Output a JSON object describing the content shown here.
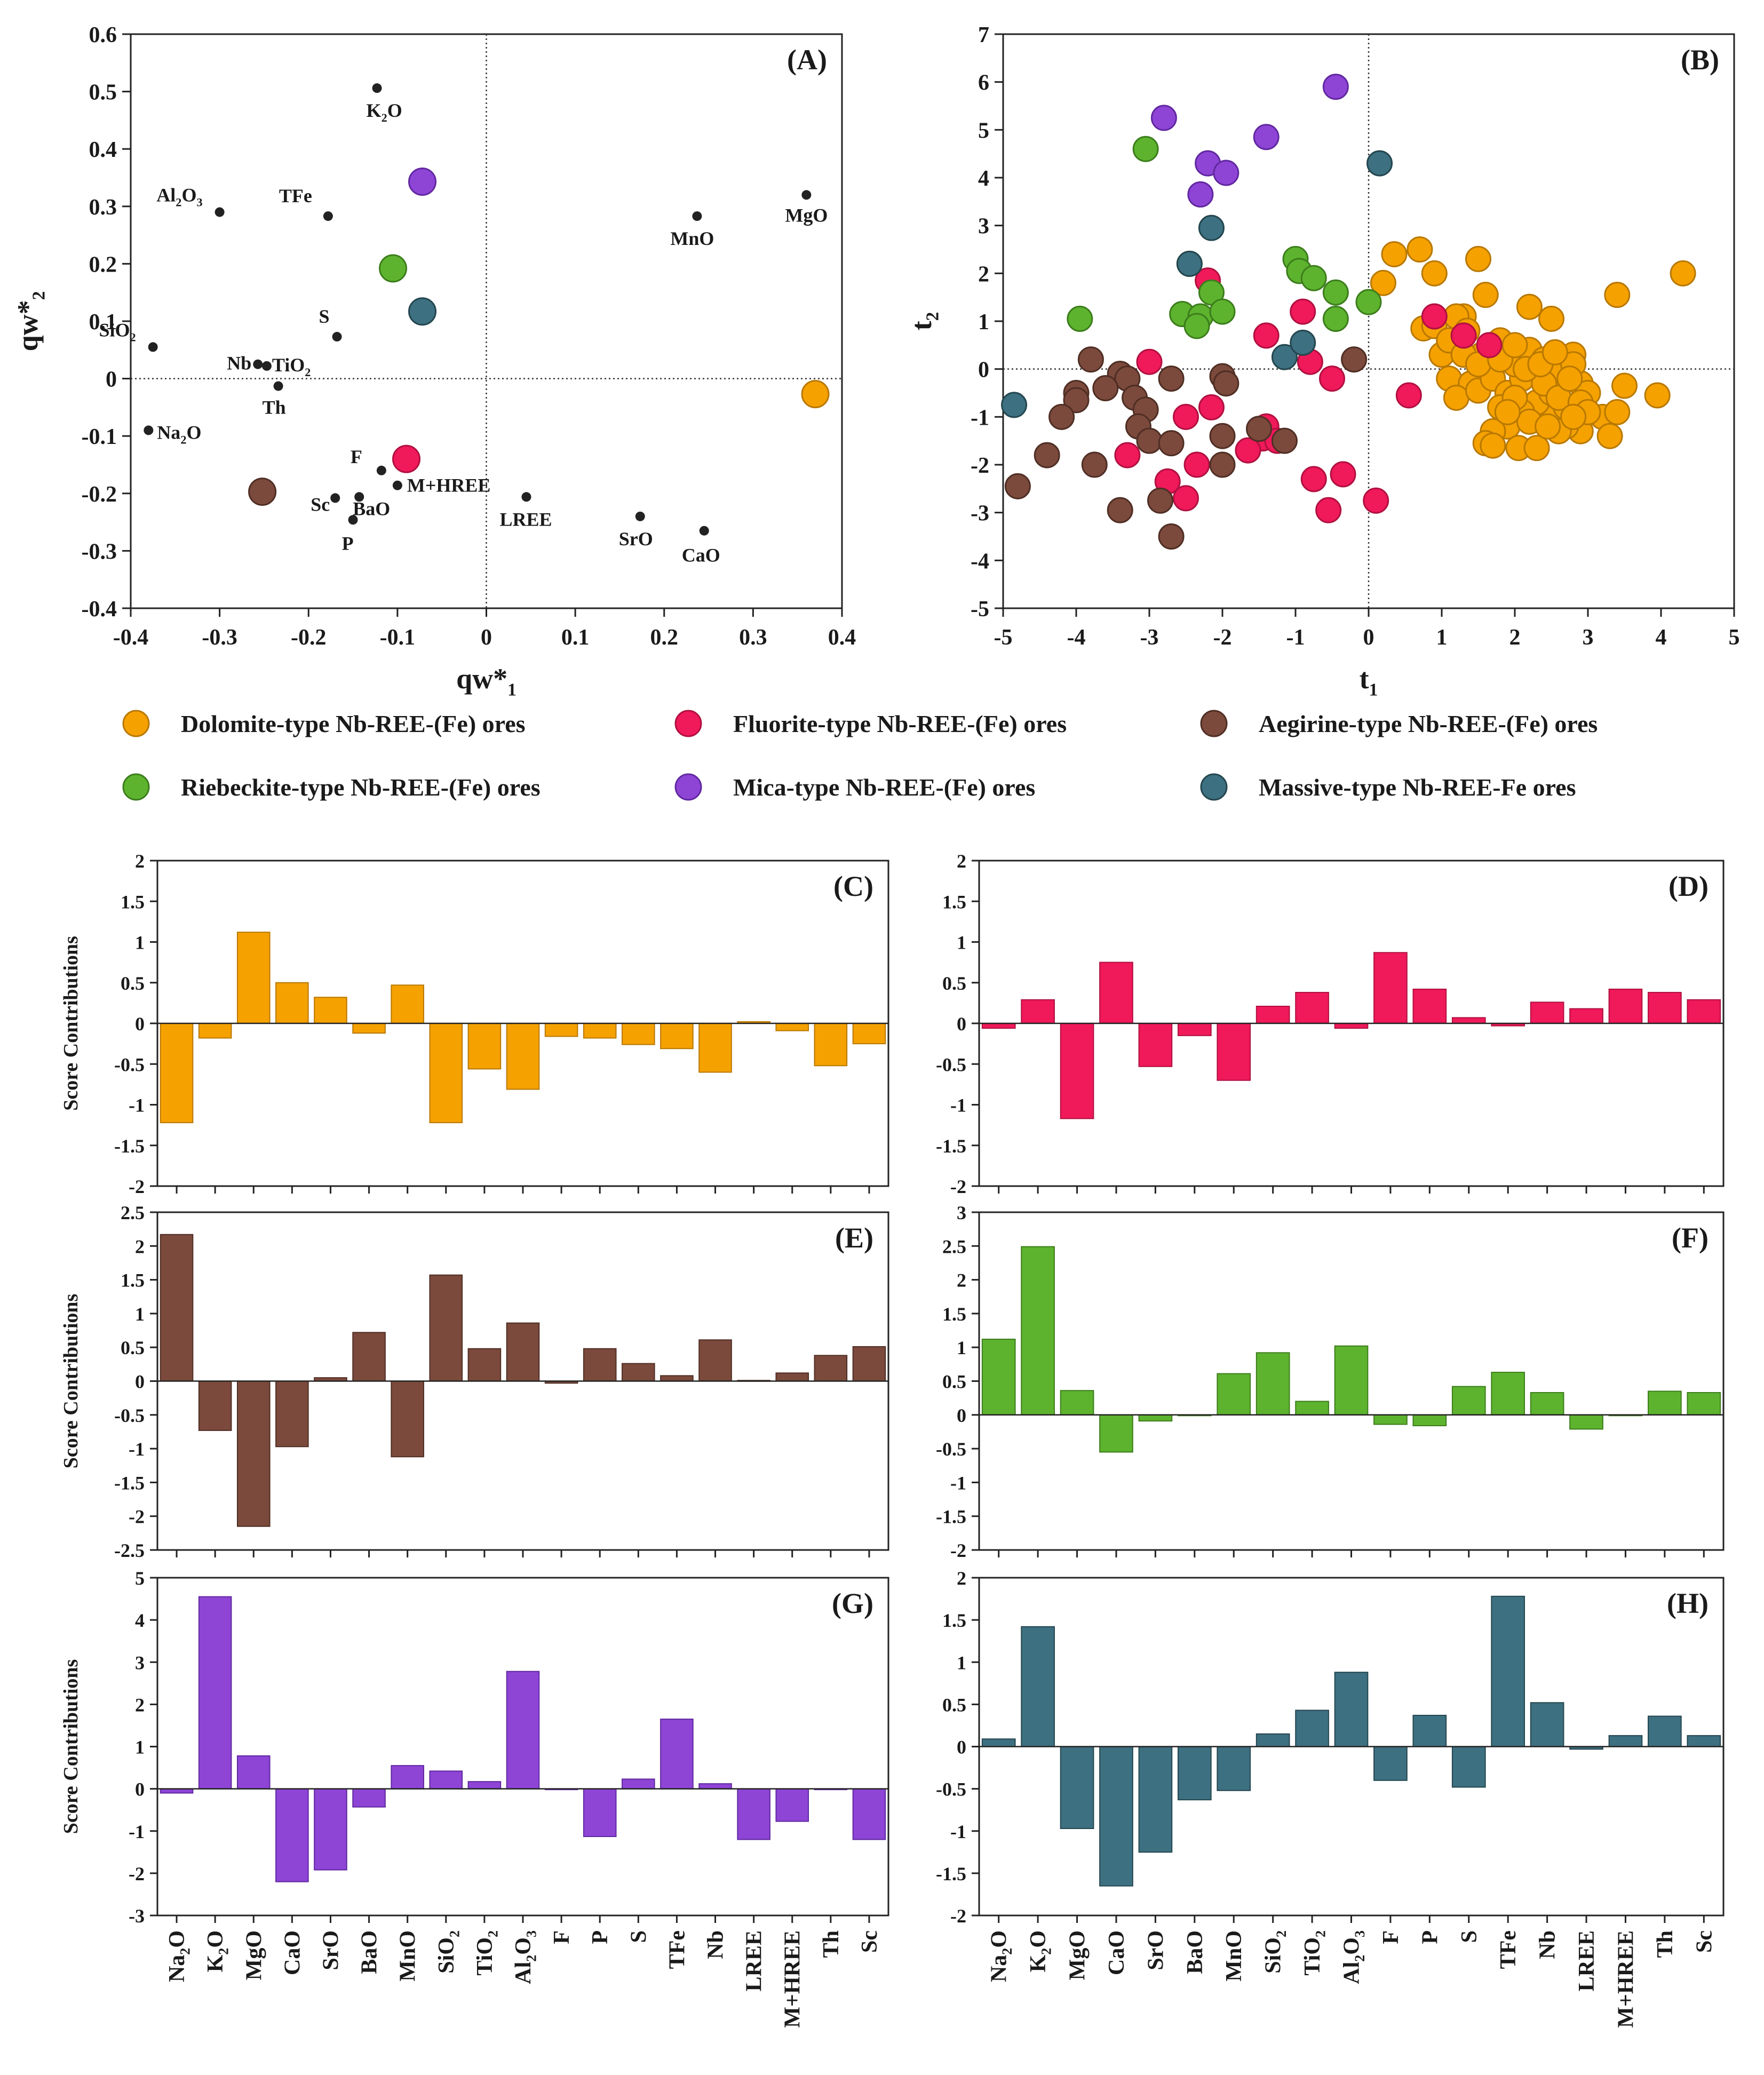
{
  "legend": [
    {
      "key": "dolomite",
      "label": "Dolomite-type Nb-REE-(Fe) ores",
      "color": "#F5A100"
    },
    {
      "key": "fluorite",
      "label": "Fluorite-type Nb-REE-(Fe) ores",
      "color": "#F0195A"
    },
    {
      "key": "aegirine",
      "label": "Aegirine-type Nb-REE-(Fe) ores",
      "color": "#7B4A3C"
    },
    {
      "key": "riebeckite",
      "label": "Riebeckite-type Nb-REE-(Fe) ores",
      "color": "#5DB32E"
    },
    {
      "key": "mica",
      "label": "Mica-type Nb-REE-(Fe) ores",
      "color": "#8E45D6"
    },
    {
      "key": "massive",
      "label": "Massive-type Nb-REE-Fe ores",
      "color": "#3D7080"
    }
  ],
  "chart_data": [
    {
      "id": "A",
      "type": "scatter",
      "panel_label": "(A)",
      "xlabel": "qw*",
      "xlabel_sub": "1",
      "ylabel": "qw*",
      "ylabel_sub": "2",
      "xlim": [
        -0.4,
        0.4
      ],
      "ylim": [
        -0.4,
        0.6
      ],
      "xticks": [
        "-0.4",
        "-0.3",
        "-0.2",
        "-0.1",
        "0",
        "0.1",
        "0.2",
        "0.3",
        "0.4"
      ],
      "yticks": [
        "-0.4",
        "-0.3",
        "-0.2",
        "-0.1",
        "0",
        "0.1",
        "0.2",
        "0.3",
        "0.4",
        "0.5",
        "0.6"
      ],
      "loadings": [
        {
          "label": "K",
          "sub": "2",
          "tail": "O",
          "x": -0.123,
          "y": 0.506
        },
        {
          "label": "Al",
          "sub": "2",
          "tail": "O",
          "sub2": "3",
          "x": -0.3,
          "y": 0.29
        },
        {
          "label": "TFe",
          "x": -0.178,
          "y": 0.283
        },
        {
          "label": "MnO",
          "x": 0.237,
          "y": 0.283
        },
        {
          "label": "MgO",
          "x": 0.36,
          "y": 0.32
        },
        {
          "label": "SiO",
          "sub": "2",
          "x": -0.375,
          "y": 0.055
        },
        {
          "label": "S",
          "x": -0.168,
          "y": 0.073
        },
        {
          "label": "Nb",
          "x": -0.257,
          "y": 0.025
        },
        {
          "label": "TiO",
          "sub": "2",
          "x": -0.247,
          "y": 0.022
        },
        {
          "label": "Th",
          "x": -0.234,
          "y": -0.013
        },
        {
          "label": "Na",
          "sub": "2",
          "tail": "O",
          "x": -0.38,
          "y": -0.09
        },
        {
          "label": "F",
          "x": -0.118,
          "y": -0.16
        },
        {
          "label": "M+HREE",
          "x": -0.1,
          "y": -0.186
        },
        {
          "label": "Sc",
          "x": -0.17,
          "y": -0.208
        },
        {
          "label": "BaO",
          "x": -0.143,
          "y": -0.206
        },
        {
          "label": "P",
          "x": -0.15,
          "y": -0.246
        },
        {
          "label": "LREE",
          "x": 0.045,
          "y": -0.206
        },
        {
          "label": "SrO",
          "x": 0.173,
          "y": -0.24
        },
        {
          "label": "CaO",
          "x": 0.245,
          "y": -0.265
        }
      ],
      "centroids": [
        {
          "group": "mica",
          "x": -0.072,
          "y": 0.343
        },
        {
          "group": "riebeckite",
          "x": -0.105,
          "y": 0.192
        },
        {
          "group": "massive",
          "x": -0.072,
          "y": 0.117
        },
        {
          "group": "dolomite",
          "x": 0.37,
          "y": -0.027
        },
        {
          "group": "fluorite",
          "x": -0.09,
          "y": -0.14
        },
        {
          "group": "aegirine",
          "x": -0.252,
          "y": -0.197
        }
      ]
    },
    {
      "id": "B",
      "type": "scatter",
      "panel_label": "(B)",
      "xlabel": "t",
      "xlabel_sub": "1",
      "ylabel": "t",
      "ylabel_sub": "2",
      "xlim": [
        -5,
        5
      ],
      "ylim": [
        -5,
        7
      ],
      "xticks": [
        "-5",
        "-4",
        "-3",
        "-2",
        "-1",
        "0",
        "1",
        "2",
        "3",
        "4",
        "5"
      ],
      "yticks": [
        "-5",
        "-4",
        "-3",
        "-2",
        "-1",
        "0",
        "1",
        "2",
        "3",
        "4",
        "5",
        "6",
        "7"
      ],
      "series": [
        {
          "group": "dolomite",
          "points": [
            [
              0.2,
              1.8
            ],
            [
              0.35,
              2.4
            ],
            [
              0.7,
              2.5
            ],
            [
              0.9,
              2
            ],
            [
              0.75,
              0.85
            ],
            [
              0.9,
              0.9
            ],
            [
              1.0,
              0.3
            ],
            [
              1.3,
              1.1
            ],
            [
              1.5,
              2.3
            ],
            [
              1.6,
              1.55
            ],
            [
              1.8,
              0.6
            ],
            [
              2.2,
              1.3
            ],
            [
              2.5,
              1.05
            ],
            [
              3.4,
              1.55
            ],
            [
              4.3,
              2
            ],
            [
              1.2,
              1.1
            ],
            [
              1.1,
              0.6
            ],
            [
              1.35,
              0.8
            ],
            [
              1.55,
              0.3
            ],
            [
              1.1,
              -0.2
            ],
            [
              1.4,
              -0.3
            ],
            [
              1.2,
              -0.6
            ],
            [
              1.5,
              -0.45
            ],
            [
              1.7,
              -0.2
            ],
            [
              1.9,
              -0.5
            ],
            [
              2.1,
              -0.2
            ],
            [
              2.0,
              0.1
            ],
            [
              2.2,
              0.4
            ],
            [
              2.4,
              0.2
            ],
            [
              2.6,
              0.0
            ],
            [
              2.8,
              0.3
            ],
            [
              2.9,
              -0.3
            ],
            [
              3.0,
              -0.5
            ],
            [
              3.2,
              -1.0
            ],
            [
              3.4,
              -0.9
            ],
            [
              3.5,
              -0.35
            ],
            [
              3.95,
              -0.55
            ],
            [
              3.3,
              -1.4
            ],
            [
              2.9,
              -1.3
            ],
            [
              2.7,
              -1.2
            ],
            [
              2.5,
              -0.9
            ],
            [
              2.3,
              -0.7
            ],
            [
              2.1,
              -0.9
            ],
            [
              1.9,
              -1.2
            ],
            [
              1.7,
              -1.3
            ],
            [
              1.6,
              -1.55
            ],
            [
              1.7,
              -1.6
            ],
            [
              2.05,
              -1.65
            ],
            [
              2.3,
              -1.65
            ],
            [
              2.5,
              -0.5
            ],
            [
              2.7,
              -0.8
            ],
            [
              2.8,
              0.1
            ],
            [
              1.8,
              -0.8
            ],
            [
              2.2,
              -1.1
            ],
            [
              2.0,
              -0.6
            ],
            [
              2.4,
              -0.3
            ],
            [
              2.6,
              -0.6
            ],
            [
              1.3,
              0.3
            ],
            [
              1.5,
              0.1
            ],
            [
              1.8,
              0.2
            ],
            [
              2.0,
              0.5
            ],
            [
              2.15,
              0.0
            ],
            [
              2.35,
              0.1
            ],
            [
              2.55,
              0.35
            ],
            [
              2.75,
              -0.2
            ],
            [
              2.9,
              -0.7
            ],
            [
              3.0,
              -0.9
            ],
            [
              2.6,
              -1.3
            ],
            [
              1.9,
              -0.9
            ],
            [
              2.45,
              -1.2
            ],
            [
              2.8,
              -1.0
            ]
          ]
        },
        {
          "group": "fluorite",
          "points": [
            [
              -2.2,
              1.85
            ],
            [
              -0.9,
              1.2
            ],
            [
              0.9,
              1.1
            ],
            [
              1.3,
              0.7
            ],
            [
              1.65,
              0.5
            ],
            [
              -1.4,
              0.7
            ],
            [
              -3.0,
              0.15
            ],
            [
              -0.8,
              0.15
            ],
            [
              -0.5,
              -0.2
            ],
            [
              0.55,
              -0.55
            ],
            [
              -2.5,
              -1.0
            ],
            [
              -2.15,
              -0.8
            ],
            [
              -1.4,
              -1.2
            ],
            [
              -1.45,
              -1.45
            ],
            [
              -1.25,
              -1.5
            ],
            [
              -1.65,
              -1.7
            ],
            [
              -3.3,
              -1.8
            ],
            [
              -2.35,
              -2.0
            ],
            [
              -0.75,
              -2.3
            ],
            [
              -0.35,
              -2.2
            ],
            [
              -2.75,
              -2.35
            ],
            [
              -2.5,
              -2.7
            ],
            [
              -0.55,
              -2.95
            ],
            [
              0.1,
              -2.75
            ]
          ]
        },
        {
          "group": "aegirine",
          "points": [
            [
              -3.8,
              0.2
            ],
            [
              -3.4,
              -0.1
            ],
            [
              -3.3,
              -0.2
            ],
            [
              -3.6,
              -0.4
            ],
            [
              -4.0,
              -0.5
            ],
            [
              -2.7,
              -0.2
            ],
            [
              -2.0,
              -0.15
            ],
            [
              -1.95,
              -0.3
            ],
            [
              -4.0,
              -0.65
            ],
            [
              -4.2,
              -1.0
            ],
            [
              -3.2,
              -0.6
            ],
            [
              -3.05,
              -0.85
            ],
            [
              -3.15,
              -1.2
            ],
            [
              -3.0,
              -1.5
            ],
            [
              -2.7,
              -1.55
            ],
            [
              -2.0,
              -1.4
            ],
            [
              -1.5,
              -1.25
            ],
            [
              -1.15,
              -1.5
            ],
            [
              -4.4,
              -1.8
            ],
            [
              -3.75,
              -2.0
            ],
            [
              -2.0,
              -2.0
            ],
            [
              -4.8,
              -2.45
            ],
            [
              -2.85,
              -2.75
            ],
            [
              -3.4,
              -2.95
            ],
            [
              -2.7,
              -3.5
            ],
            [
              -0.2,
              0.2
            ]
          ]
        },
        {
          "group": "riebeckite",
          "points": [
            [
              -3.05,
              4.6
            ],
            [
              -1.0,
              2.3
            ],
            [
              -0.95,
              2.05
            ],
            [
              -0.75,
              1.9
            ],
            [
              -2.15,
              1.6
            ],
            [
              -2.45,
              2.2
            ],
            [
              -0.45,
              1.6
            ],
            [
              -2.55,
              1.15
            ],
            [
              -2.3,
              1.1
            ],
            [
              -2.0,
              1.2
            ],
            [
              -2.35,
              0.9
            ],
            [
              -0.45,
              1.05
            ],
            [
              0.0,
              1.4
            ],
            [
              -3.95,
              1.05
            ]
          ]
        },
        {
          "group": "mica",
          "points": [
            [
              -2.8,
              5.25
            ],
            [
              -2.2,
              4.3
            ],
            [
              -1.95,
              4.1
            ],
            [
              -1.4,
              4.85
            ],
            [
              -0.45,
              5.9
            ],
            [
              -2.3,
              3.65
            ]
          ]
        },
        {
          "group": "massive",
          "points": [
            [
              -4.85,
              -0.75
            ],
            [
              -2.45,
              2.2
            ],
            [
              -2.15,
              2.95
            ],
            [
              -1.15,
              0.25
            ],
            [
              -0.9,
              0.55
            ],
            [
              0.15,
              4.3
            ]
          ]
        }
      ]
    },
    {
      "id": "C",
      "type": "bar",
      "panel_label": "(C)",
      "group": "dolomite",
      "ylabel": "Score Contributions",
      "ylim": [
        -2,
        2
      ],
      "yticks": [
        "-2",
        "-1.5",
        "-1",
        "-0.5",
        "0",
        "0.5",
        "1",
        "1.5",
        "2"
      ],
      "values": [
        -1.22,
        -0.18,
        1.12,
        0.5,
        0.32,
        -0.12,
        0.47,
        -1.22,
        -0.56,
        -0.81,
        -0.16,
        -0.18,
        -0.26,
        -0.31,
        -0.6,
        0.02,
        -0.09,
        -0.52,
        -0.25
      ]
    },
    {
      "id": "D",
      "type": "bar",
      "panel_label": "(D)",
      "group": "fluorite",
      "ylabel": "",
      "ylim": [
        -2,
        2
      ],
      "yticks": [
        "-2",
        "-1.5",
        "-1",
        "-0.5",
        "0",
        "0.5",
        "1",
        "1.5",
        "2"
      ],
      "values": [
        -0.06,
        0.29,
        -1.17,
        0.75,
        -0.53,
        -0.15,
        -0.7,
        0.21,
        0.38,
        -0.06,
        0.87,
        0.42,
        0.07,
        -0.03,
        0.26,
        0.18,
        0.42,
        0.38,
        0.29
      ]
    },
    {
      "id": "E",
      "type": "bar",
      "panel_label": "(E)",
      "group": "aegirine",
      "ylabel": "Score Contributions",
      "ylim": [
        -2.5,
        2.5
      ],
      "yticks": [
        "-2.5",
        "-2",
        "-1.5",
        "-1",
        "-0.5",
        "0",
        "0.5",
        "1",
        "1.5",
        "2",
        "2.5"
      ],
      "values": [
        2.17,
        -0.73,
        -2.15,
        -0.97,
        0.05,
        0.72,
        -1.12,
        1.57,
        0.48,
        0.86,
        -0.03,
        0.48,
        0.26,
        0.08,
        0.61,
        0.01,
        0.12,
        0.38,
        0.51
      ]
    },
    {
      "id": "F",
      "type": "bar",
      "panel_label": "(F)",
      "group": "riebeckite",
      "ylabel": "",
      "ylim": [
        -2,
        3
      ],
      "yticks": [
        "-2",
        "-1.5",
        "-1",
        "-0.5",
        "0",
        "0.5",
        "1",
        "1.5",
        "2",
        "2.5",
        "3"
      ],
      "values": [
        1.12,
        2.49,
        0.36,
        -0.55,
        -0.09,
        0.0,
        0.61,
        0.92,
        0.2,
        1.02,
        -0.14,
        -0.16,
        0.42,
        0.63,
        0.33,
        -0.21,
        0.0,
        0.35,
        0.33
      ]
    },
    {
      "id": "G",
      "type": "bar",
      "panel_label": "(G)",
      "group": "mica",
      "ylabel": "Score Contributions",
      "ylim": [
        -3,
        5
      ],
      "yticks": [
        "-3",
        "-2",
        "-1",
        "0",
        "1",
        "2",
        "3",
        "4",
        "5"
      ],
      "values": [
        -0.1,
        4.55,
        0.78,
        -2.2,
        -1.92,
        -0.43,
        0.55,
        0.42,
        0.17,
        2.78,
        0.0,
        -1.13,
        0.23,
        1.65,
        0.12,
        -1.2,
        -0.77,
        0.0,
        -1.2
      ]
    },
    {
      "id": "H",
      "type": "bar",
      "panel_label": "(H)",
      "group": "massive",
      "ylabel": "",
      "ylim": [
        -2,
        2
      ],
      "yticks": [
        "-2",
        "-1.5",
        "-1",
        "-0.5",
        "0",
        "0.5",
        "1",
        "1.5",
        "2"
      ],
      "values": [
        0.09,
        1.42,
        -0.97,
        -1.65,
        -1.25,
        -0.63,
        -0.52,
        0.15,
        0.43,
        0.88,
        -0.4,
        0.37,
        -0.48,
        1.78,
        0.52,
        -0.03,
        0.13,
        0.36,
        0.13
      ]
    }
  ],
  "bar_categories": [
    {
      "t": "Na",
      "s": "2",
      "e": "O"
    },
    {
      "t": "K",
      "s": "2",
      "e": "O"
    },
    {
      "t": "MgO"
    },
    {
      "t": "CaO"
    },
    {
      "t": "SrO"
    },
    {
      "t": "BaO"
    },
    {
      "t": "MnO"
    },
    {
      "t": "SiO",
      "s": "2"
    },
    {
      "t": "TiO",
      "s": "2"
    },
    {
      "t": "Al",
      "s": "2",
      "e": "O",
      "s2": "3"
    },
    {
      "t": "F"
    },
    {
      "t": "P"
    },
    {
      "t": "S"
    },
    {
      "t": "TFe"
    },
    {
      "t": "Nb"
    },
    {
      "t": "LREE"
    },
    {
      "t": "M+HREE"
    },
    {
      "t": "Th"
    },
    {
      "t": "Sc"
    }
  ]
}
